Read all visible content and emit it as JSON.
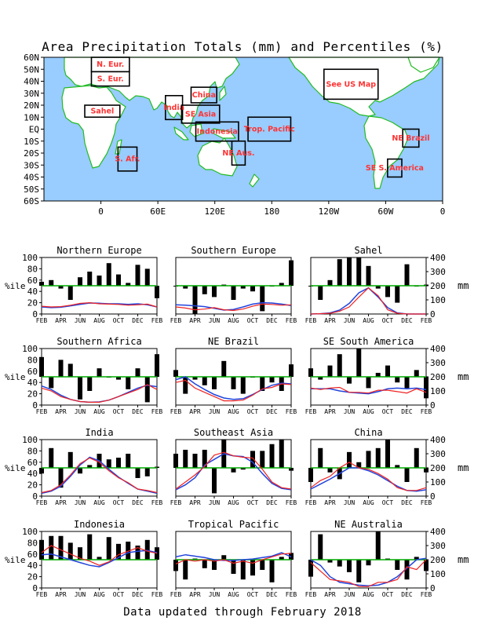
{
  "title": "Area Precipitation Totals (mm) and Percentiles (%)",
  "footer": "Data updated through February 2018",
  "colors": {
    "ocean": "#99ccff",
    "land": "#ffffff",
    "coast": "#22bb22",
    "region_label": "#ff3333",
    "percentile_line": "#00aa00",
    "bars": "#000000",
    "current_line": "#ee2222",
    "normal_line": "#2244dd"
  },
  "map": {
    "lat_ticks": [
      "60N",
      "50N",
      "40N",
      "30N",
      "20N",
      "10N",
      "EQ",
      "10S",
      "20S",
      "30S",
      "40S",
      "50S",
      "60S"
    ],
    "lon_ticks": [
      "0",
      "60E",
      "120E",
      "180",
      "120W",
      "60W",
      "0"
    ],
    "regions": [
      {
        "label": "N. Eur.",
        "lon": [
          -10,
          30
        ],
        "lat": [
          48,
          60
        ]
      },
      {
        "label": "S. Eur.",
        "lon": [
          -10,
          30
        ],
        "lat": [
          36,
          48
        ]
      },
      {
        "label": "Sahel",
        "lon": [
          -17,
          20
        ],
        "lat": [
          10,
          20
        ]
      },
      {
        "label": "India",
        "lon": [
          68,
          86
        ],
        "lat": [
          8,
          28
        ]
      },
      {
        "label": "China",
        "lon": [
          95,
          122
        ],
        "lat": [
          22,
          35
        ]
      },
      {
        "label": "SE Asia",
        "lon": [
          85,
          125
        ],
        "lat": [
          5,
          20
        ]
      },
      {
        "label": "Indonesia",
        "lon": [
          100,
          145
        ],
        "lat": [
          -10,
          6
        ]
      },
      {
        "label": "Trop. Pacific",
        "lon": [
          155,
          200
        ],
        "lat": [
          -10,
          10
        ]
      },
      {
        "label": "NE Aus.",
        "lon": [
          138,
          152
        ],
        "lat": [
          -30,
          -10
        ]
      },
      {
        "label": "S. Afr.",
        "lon": [
          18,
          38
        ],
        "lat": [
          -35,
          -15
        ]
      },
      {
        "label": "See US Map",
        "lon": [
          235,
          292
        ],
        "lat": [
          25,
          50
        ]
      },
      {
        "label": "NE Brazil",
        "lon": [
          318,
          335
        ],
        "lat": [
          -15,
          0
        ]
      },
      {
        "label": "SE S. America",
        "lon": [
          302,
          317
        ],
        "lat": [
          -40,
          -25
        ]
      }
    ]
  },
  "axes_text": {
    "percentile_label": "%ile",
    "mm_label": "mm",
    "left_ticks": [
      "0",
      "20",
      "40",
      "60",
      "80",
      "100"
    ],
    "right_ticks": [
      "0",
      "100",
      "200",
      "300",
      "400"
    ],
    "month_ticks": [
      "FEB",
      "APR",
      "JUN",
      "AUG",
      "OCT",
      "DEC",
      "FEB"
    ]
  },
  "chart_data": [
    {
      "type": "bar+line",
      "title": "Northern Europe",
      "x": [
        "FEB",
        "MAR",
        "APR",
        "MAY",
        "JUN",
        "JUL",
        "AUG",
        "SEP",
        "OCT",
        "NOV",
        "DEC",
        "JAN",
        "FEB"
      ],
      "percentiles": [
        57,
        60,
        45,
        25,
        65,
        75,
        68,
        90,
        70,
        55,
        87,
        80,
        28
      ],
      "current_mm": [
        55,
        50,
        52,
        62,
        75,
        80,
        72,
        70,
        68,
        62,
        65,
        70,
        50
      ],
      "normal_mm": [
        50,
        45,
        48,
        58,
        68,
        78,
        76,
        72,
        72,
        68,
        72,
        65,
        50
      ]
    },
    {
      "type": "bar+line",
      "title": "Southern Europe",
      "x": [
        "FEB",
        "MAR",
        "APR",
        "MAY",
        "JUN",
        "JUL",
        "AUG",
        "SEP",
        "OCT",
        "NOV",
        "DEC",
        "JAN",
        "FEB"
      ],
      "percentiles": [
        50,
        45,
        0,
        35,
        30,
        52,
        25,
        45,
        40,
        5,
        50,
        55,
        95
      ],
      "current_mm": [
        50,
        42,
        30,
        35,
        45,
        30,
        25,
        35,
        55,
        70,
        68,
        62,
        65
      ],
      "normal_mm": [
        65,
        62,
        58,
        52,
        40,
        28,
        32,
        50,
        70,
        80,
        78,
        70,
        60
      ]
    },
    {
      "type": "bar+line",
      "title": "Sahel",
      "x": [
        "FEB",
        "MAR",
        "APR",
        "MAY",
        "JUN",
        "JUL",
        "AUG",
        "SEP",
        "OCT",
        "NOV",
        "DEC",
        "JAN",
        "FEB"
      ],
      "percentiles": [
        50,
        25,
        60,
        97,
        100,
        100,
        85,
        45,
        30,
        20,
        88,
        50,
        52
      ],
      "current_mm": [
        0,
        2,
        5,
        20,
        50,
        120,
        185,
        130,
        30,
        5,
        0,
        0,
        0
      ],
      "normal_mm": [
        0,
        2,
        8,
        28,
        75,
        150,
        185,
        120,
        45,
        8,
        0,
        0,
        0
      ]
    },
    {
      "type": "bar+line",
      "title": "Southern Africa",
      "x": [
        "FEB",
        "MAR",
        "APR",
        "MAY",
        "JUN",
        "JUL",
        "AUG",
        "SEP",
        "OCT",
        "NOV",
        "DEC",
        "JAN",
        "FEB"
      ],
      "percentiles": [
        85,
        30,
        80,
        73,
        10,
        25,
        65,
        50,
        45,
        28,
        65,
        5,
        90
      ],
      "current_mm": [
        120,
        100,
        60,
        40,
        25,
        20,
        20,
        35,
        60,
        85,
        110,
        145,
        110
      ],
      "normal_mm": [
        135,
        110,
        70,
        40,
        25,
        20,
        22,
        35,
        60,
        90,
        120,
        140,
        130
      ]
    },
    {
      "type": "bar+line",
      "title": "NE Brazil",
      "x": [
        "FEB",
        "MAR",
        "APR",
        "MAY",
        "JUN",
        "JUL",
        "AUG",
        "SEP",
        "OCT",
        "NOV",
        "DEC",
        "JAN",
        "FEB"
      ],
      "percentiles": [
        62,
        20,
        45,
        35,
        28,
        78,
        28,
        20,
        50,
        25,
        40,
        25,
        72
      ],
      "current_mm": [
        160,
        175,
        120,
        90,
        60,
        30,
        30,
        35,
        70,
        115,
        125,
        150,
        145
      ],
      "normal_mm": [
        180,
        200,
        150,
        110,
        75,
        50,
        40,
        45,
        75,
        110,
        140,
        155,
        150
      ]
    },
    {
      "type": "bar+line",
      "title": "SE South America",
      "x": [
        "FEB",
        "MAR",
        "APR",
        "MAY",
        "JUN",
        "JUL",
        "AUG",
        "SEP",
        "OCT",
        "NOV",
        "DEC",
        "JAN",
        "FEB"
      ],
      "percentiles": [
        65,
        45,
        70,
        90,
        38,
        100,
        30,
        57,
        70,
        40,
        30,
        62,
        12
      ],
      "current_mm": [
        120,
        110,
        120,
        125,
        90,
        90,
        85,
        105,
        105,
        95,
        85,
        115,
        90
      ],
      "normal_mm": [
        115,
        115,
        115,
        100,
        90,
        85,
        80,
        95,
        115,
        120,
        115,
        120,
        110
      ]
    },
    {
      "type": "bar+line",
      "title": "India",
      "x": [
        "FEB",
        "MAR",
        "APR",
        "MAY",
        "JUN",
        "JUL",
        "AUG",
        "SEP",
        "OCT",
        "NOV",
        "DEC",
        "JAN",
        "FEB"
      ],
      "percentiles": [
        40,
        85,
        15,
        78,
        40,
        55,
        75,
        65,
        68,
        75,
        32,
        35,
        52
      ],
      "current_mm": [
        25,
        40,
        80,
        150,
        230,
        270,
        240,
        180,
        130,
        95,
        50,
        40,
        25
      ],
      "normal_mm": [
        20,
        35,
        70,
        140,
        220,
        275,
        250,
        190,
        135,
        90,
        50,
        35,
        20
      ]
    },
    {
      "type": "bar+line",
      "title": "Southeast Asia",
      "x": [
        "FEB",
        "MAR",
        "APR",
        "MAY",
        "JUN",
        "JUL",
        "AUG",
        "SEP",
        "OCT",
        "NOV",
        "DEC",
        "JAN",
        "FEB"
      ],
      "percentiles": [
        75,
        82,
        75,
        82,
        5,
        100,
        42,
        47,
        80,
        80,
        92,
        100,
        45
      ],
      "current_mm": [
        50,
        100,
        150,
        210,
        290,
        310,
        285,
        275,
        270,
        190,
        100,
        60,
        50
      ],
      "normal_mm": [
        45,
        80,
        130,
        220,
        260,
        300,
        285,
        280,
        240,
        160,
        90,
        55,
        45
      ]
    },
    {
      "type": "bar+line",
      "title": "China",
      "x": [
        "FEB",
        "MAR",
        "APR",
        "MAY",
        "JUN",
        "JUL",
        "AUG",
        "SEP",
        "OCT",
        "NOV",
        "DEC",
        "JAN",
        "FEB"
      ],
      "percentiles": [
        25,
        85,
        42,
        30,
        78,
        60,
        80,
        85,
        100,
        55,
        25,
        85,
        42
      ],
      "current_mm": [
        60,
        110,
        140,
        200,
        240,
        200,
        190,
        160,
        120,
        60,
        40,
        40,
        60
      ],
      "normal_mm": [
        50,
        85,
        120,
        160,
        200,
        200,
        180,
        150,
        110,
        70,
        40,
        35,
        45
      ]
    },
    {
      "type": "bar+line",
      "title": "Indonesia",
      "x": [
        "FEB",
        "MAR",
        "APR",
        "MAY",
        "JUN",
        "JUL",
        "AUG",
        "SEP",
        "OCT",
        "NOV",
        "DEC",
        "JAN",
        "FEB"
      ],
      "percentiles": [
        85,
        92,
        92,
        80,
        72,
        95,
        55,
        90,
        78,
        82,
        75,
        85,
        72
      ],
      "current_mm": [
        250,
        300,
        270,
        240,
        210,
        190,
        160,
        185,
        235,
        260,
        285,
        260,
        245
      ],
      "normal_mm": [
        235,
        240,
        220,
        200,
        180,
        160,
        150,
        180,
        215,
        250,
        260,
        265,
        250
      ]
    },
    {
      "type": "bar+line",
      "title": "Tropical Pacific",
      "x": [
        "FEB",
        "MAR",
        "APR",
        "MAY",
        "JUN",
        "JUL",
        "AUG",
        "SEP",
        "OCT",
        "NOV",
        "DEC",
        "JAN",
        "FEB"
      ],
      "percentiles": [
        30,
        15,
        52,
        35,
        32,
        58,
        25,
        15,
        22,
        32,
        10,
        55,
        62
      ],
      "current_mm": [
        170,
        200,
        190,
        200,
        190,
        200,
        175,
        190,
        175,
        200,
        220,
        240,
        245
      ],
      "normal_mm": [
        220,
        235,
        225,
        215,
        200,
        195,
        195,
        200,
        205,
        215,
        225,
        250,
        220
      ]
    },
    {
      "type": "bar+line",
      "title": "NE Australia",
      "x": [
        "FEB",
        "MAR",
        "APR",
        "MAY",
        "JUN",
        "JUL",
        "AUG",
        "SEP",
        "OCT",
        "NOV",
        "DEC",
        "JAN",
        "FEB"
      ],
      "percentiles": [
        20,
        95,
        45,
        38,
        28,
        10,
        40,
        100,
        52,
        32,
        15,
        55,
        30
      ],
      "current_mm": [
        180,
        120,
        60,
        50,
        40,
        10,
        10,
        40,
        40,
        60,
        150,
        130,
        200
      ],
      "normal_mm": [
        200,
        160,
        80,
        40,
        30,
        20,
        15,
        20,
        40,
        80,
        140,
        200,
        210
      ]
    }
  ]
}
